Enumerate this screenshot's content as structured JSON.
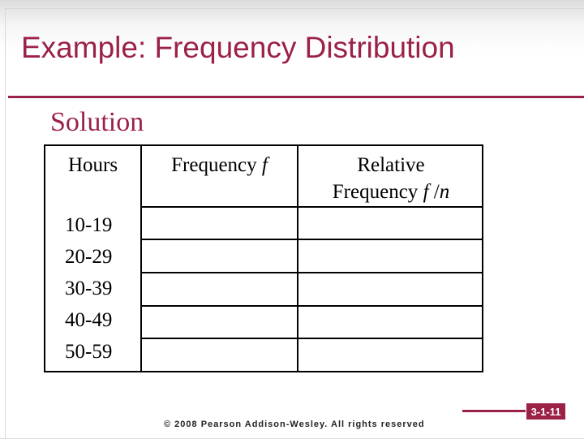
{
  "slide": {
    "title": "Example: Frequency Distribution",
    "subtitle": "Solution",
    "footer": "© 2008 Pearson Addison-Wesley. All rights reserved",
    "slide_number": "3-1-11",
    "accent_color": "#9b2147"
  },
  "table": {
    "headers": {
      "hours": "Hours",
      "frequency": "Frequency f",
      "relative_line1": "Relative",
      "relative_line2": "Frequency f /n"
    },
    "rows": [
      {
        "hours": "10-19",
        "frequency": "",
        "relative": ""
      },
      {
        "hours": "20-29",
        "frequency": "",
        "relative": ""
      },
      {
        "hours": "30-39",
        "frequency": "",
        "relative": ""
      },
      {
        "hours": "40-49",
        "frequency": "",
        "relative": ""
      },
      {
        "hours": "50-59",
        "frequency": "",
        "relative": ""
      }
    ]
  }
}
